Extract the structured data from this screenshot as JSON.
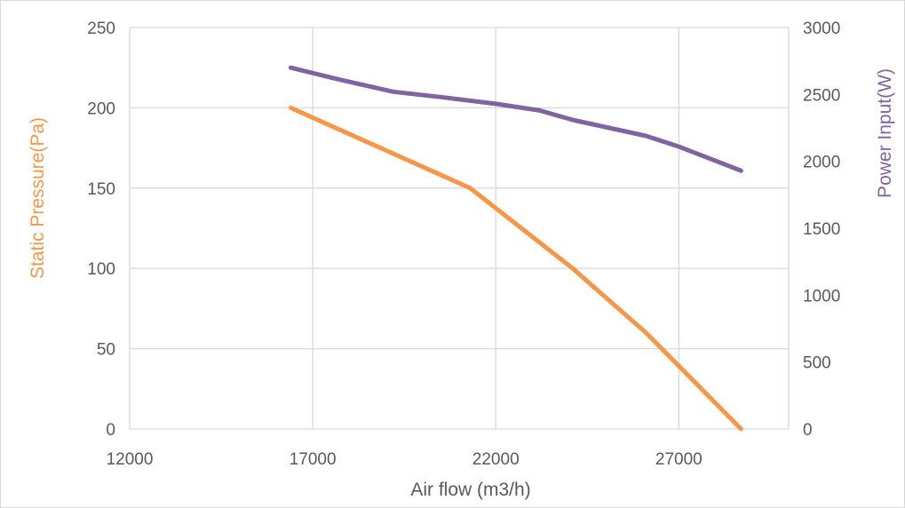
{
  "chart_data": {
    "type": "line",
    "title": "",
    "xlabel": "Air flow (m3/h)",
    "ylabel": "Static Pressure(Pa)",
    "y2label": "Power Input(W)",
    "xlim": [
      12000,
      30000
    ],
    "ylim": [
      0,
      250
    ],
    "y2lim": [
      0,
      3000
    ],
    "x_ticks": [
      "12000",
      "17000",
      "22000",
      "27000"
    ],
    "x_tick_values": [
      12000,
      17000,
      22000,
      27000
    ],
    "y_ticks": [
      "0",
      "50",
      "100",
      "150",
      "200",
      "250"
    ],
    "y_tick_values": [
      0,
      50,
      100,
      150,
      200,
      250
    ],
    "y2_ticks": [
      "0",
      "500",
      "1000",
      "1500",
      "2000",
      "2500",
      "3000"
    ],
    "y2_tick_values": [
      0,
      500,
      1000,
      1500,
      2000,
      2500,
      3000
    ],
    "grid": true,
    "series": [
      {
        "name": "Static Pressure",
        "axis": "left",
        "color": "#f79646",
        "x": [
          16400,
          21300,
          24100,
          26100,
          28700
        ],
        "values": [
          200,
          150,
          100,
          60,
          0
        ]
      },
      {
        "name": "Power Input",
        "axis": "right",
        "color": "#8064a2",
        "x": [
          16400,
          17600,
          19200,
          20500,
          22000,
          23200,
          24100,
          25100,
          26100,
          27000,
          28700
        ],
        "values": [
          2700,
          2620,
          2520,
          2480,
          2430,
          2380,
          2310,
          2250,
          2190,
          2110,
          1930
        ]
      }
    ]
  }
}
